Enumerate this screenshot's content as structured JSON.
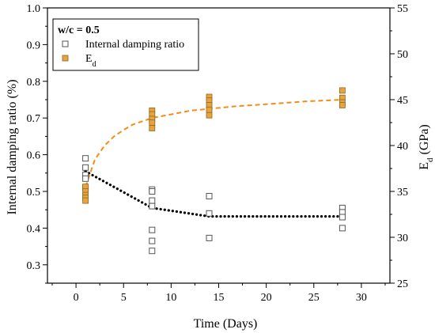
{
  "chart_data": {
    "type": "scatter",
    "xlabel": "Time (Days)",
    "ylabel_left": "Internal damping ratio (%)",
    "ylabel_right_main": "E",
    "ylabel_right_sub": "d",
    "ylabel_right_unit": " (GPa)",
    "xlim": [
      -3,
      33
    ],
    "ylim_left": [
      0.25,
      1.0
    ],
    "ylim_right": [
      25,
      55
    ],
    "xticks": [
      0,
      5,
      10,
      15,
      20,
      25,
      30
    ],
    "yticks_left": [
      0.3,
      0.4,
      0.5,
      0.6,
      0.7,
      0.8,
      0.9,
      1.0
    ],
    "yticks_left_labels": [
      "0.3",
      "0.4",
      "0.5",
      "0.6",
      "0.7",
      "0.8",
      "0.9",
      "1.0"
    ],
    "yticks_right": [
      25,
      30,
      35,
      40,
      45,
      50,
      55
    ],
    "legend": {
      "title": "w/c = 0.5",
      "placement": "top-left",
      "entries": [
        {
          "label": "Internal damping ratio",
          "sub": ""
        },
        {
          "label": "E",
          "sub": "d"
        }
      ]
    },
    "series": [
      {
        "name": "Internal damping ratio",
        "axis": "left",
        "marker": "open-square",
        "color": "#555555",
        "points": [
          [
            1,
            0.59
          ],
          [
            1,
            0.565
          ],
          [
            1,
            0.545
          ],
          [
            1,
            0.535
          ],
          [
            1,
            0.51
          ],
          [
            8,
            0.505
          ],
          [
            8,
            0.5
          ],
          [
            8,
            0.475
          ],
          [
            8,
            0.46
          ],
          [
            8,
            0.395
          ],
          [
            8,
            0.365
          ],
          [
            8,
            0.338
          ],
          [
            14,
            0.487
          ],
          [
            14,
            0.44
          ],
          [
            14,
            0.373
          ],
          [
            28,
            0.455
          ],
          [
            28,
            0.443
          ],
          [
            28,
            0.43
          ],
          [
            28,
            0.4
          ]
        ]
      },
      {
        "name": "E",
        "name_sub": "d",
        "axis": "right",
        "marker": "filled-square",
        "color": "#e8a33c",
        "points": [
          [
            1,
            35.5
          ],
          [
            1,
            35.0
          ],
          [
            1,
            34.6
          ],
          [
            1,
            34.3
          ],
          [
            1,
            34.0
          ],
          [
            8,
            43.8
          ],
          [
            8,
            43.4
          ],
          [
            8,
            42.9
          ],
          [
            8,
            42.5
          ],
          [
            8,
            41.9
          ],
          [
            14,
            45.3
          ],
          [
            14,
            44.9
          ],
          [
            14,
            44.4
          ],
          [
            14,
            43.9
          ],
          [
            14,
            43.3
          ],
          [
            28,
            46.0
          ],
          [
            28,
            45.2
          ],
          [
            28,
            44.7
          ],
          [
            28,
            44.4
          ]
        ]
      }
    ],
    "fit_lines": [
      {
        "series": "Internal damping ratio",
        "axis": "left",
        "style": "dotted",
        "color": "#000000",
        "points": [
          [
            1,
            0.555
          ],
          [
            8,
            0.455
          ],
          [
            14,
            0.432
          ],
          [
            20,
            0.432
          ],
          [
            28,
            0.432
          ]
        ]
      },
      {
        "series": "E",
        "axis": "right",
        "style": "dashed",
        "color": "#f28c1a",
        "points": [
          [
            1,
            35.5
          ],
          [
            2,
            38.5
          ],
          [
            3,
            40.0
          ],
          [
            4,
            41.0
          ],
          [
            5,
            41.7
          ],
          [
            6,
            42.3
          ],
          [
            8,
            43.0
          ],
          [
            10,
            43.4
          ],
          [
            12,
            43.8
          ],
          [
            14,
            44.0
          ],
          [
            17,
            44.3
          ],
          [
            20,
            44.5
          ],
          [
            24,
            44.8
          ],
          [
            28,
            45.0
          ]
        ]
      }
    ]
  }
}
